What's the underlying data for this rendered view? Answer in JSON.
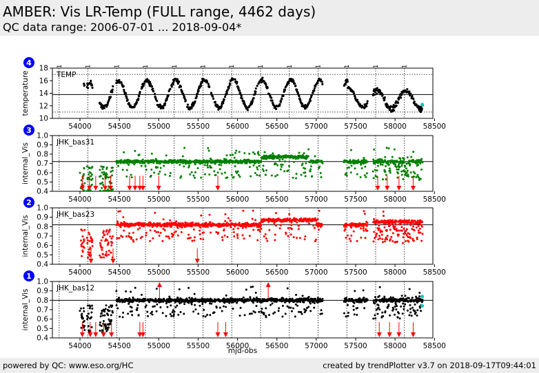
{
  "header": {
    "title": "AMBER: Vis LR-Temp (FULL range, 4462 days)",
    "subtitle": "QC data range: 2006-07-01 ... 2018-09-04*"
  },
  "footer": {
    "left": "powered by QC: www.eso.org/HC",
    "right": "created by trendPlotter v3.7 on 2018-09-17T09:44:01"
  },
  "colors": {
    "black": "#000000",
    "green": "#008000",
    "red": "#ff0000",
    "cyan": "#00c8c8",
    "badge": "#0000ff"
  },
  "chart_data": {
    "type": "scatter",
    "xlabel": "mjd-obs",
    "xlim": [
      53650,
      58480
    ],
    "xticks": [
      54000,
      54500,
      55000,
      55500,
      56000,
      56500,
      57000,
      57500,
      58000,
      58500
    ],
    "date_markers": [
      {
        "label": "2006-01-01",
        "mjd": 53736
      },
      {
        "label": "2007-01-01",
        "mjd": 54101
      },
      {
        "label": "2008-01-01",
        "mjd": 54466
      },
      {
        "label": "2009-01-01",
        "mjd": 54832
      },
      {
        "label": "2010-01-01",
        "mjd": 55197
      },
      {
        "label": "2011-01-01",
        "mjd": 55562
      },
      {
        "label": "2012-01-01",
        "mjd": 55927
      },
      {
        "label": "2013-01-01",
        "mjd": 56293
      },
      {
        "label": "2014-01-01",
        "mjd": 56658
      },
      {
        "label": "2015-01-01",
        "mjd": 57023
      },
      {
        "label": "2016-01-01",
        "mjd": 57388
      },
      {
        "label": "2017-01-01",
        "mjd": 57754
      },
      {
        "label": "2018-01-01",
        "mjd": 58119
      }
    ],
    "panels": [
      {
        "badge": "4",
        "label": "TEMP",
        "ylabel": "temperature",
        "ylim": [
          10,
          18
        ],
        "yticks": [
          10,
          12,
          14,
          16,
          18
        ],
        "ref_line": 13.8,
        "dotted_lines": [
          17.0,
          11.0
        ],
        "color": "#000000",
        "outliers_down": []
      },
      {
        "badge": "3",
        "label": "JHK_bas31",
        "ylabel": "internal_Vis",
        "ylim": [
          0.4,
          1.0
        ],
        "yticks": [
          0.4,
          0.5,
          0.6,
          0.7,
          0.8,
          0.9,
          1.0
        ],
        "ref_line": 0.72,
        "dotted_lines": [],
        "color": "#008000",
        "outliers_down": [
          54030,
          54120,
          54200,
          54320,
          54390,
          54630,
          54700,
          54760,
          54800,
          55000,
          55750,
          57780,
          57900,
          58050,
          58230
        ]
      },
      {
        "badge": "2",
        "label": "JHK_bas23",
        "ylabel": "internal_Vis",
        "ylim": [
          0.4,
          1.0
        ],
        "yticks": [
          0.4,
          0.5,
          0.6,
          0.7,
          0.8,
          0.9,
          1.0
        ],
        "ref_line": 0.82,
        "dotted_lines": [],
        "color": "#ff0000",
        "outliers_down": [
          54140,
          54420,
          55490
        ]
      },
      {
        "badge": "1",
        "label": "JHK_bas12",
        "ylabel": "internal_Vis",
        "ylim": [
          0.4,
          1.0
        ],
        "yticks": [
          0.4,
          0.5,
          0.6,
          0.7,
          0.8,
          0.9,
          1.0
        ],
        "ref_line": 0.8,
        "dotted_lines": [],
        "color": "#000000",
        "outliers_down": [
          54030,
          54130,
          54200,
          54300,
          54400,
          54760,
          54800,
          55750,
          55850,
          57800,
          57930,
          58050,
          58230
        ],
        "outliers_up": [
          55010,
          56390
        ]
      }
    ]
  }
}
